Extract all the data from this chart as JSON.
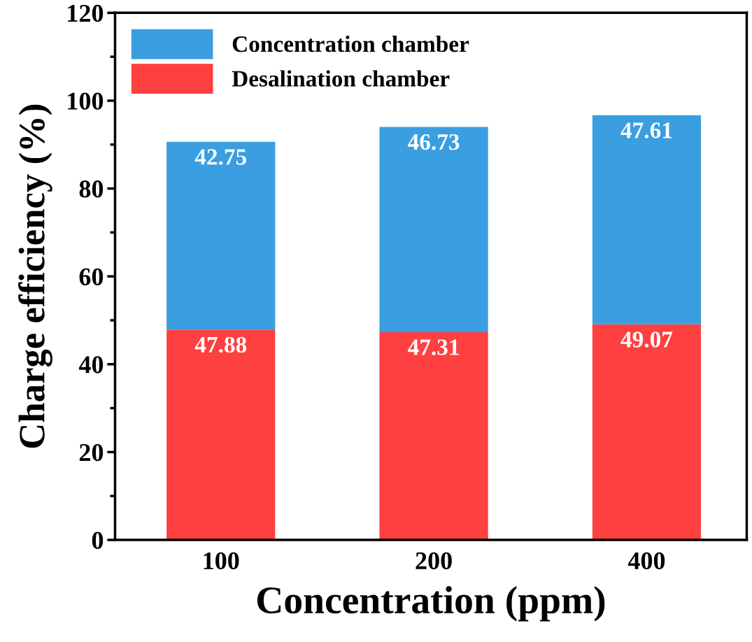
{
  "chart_data": {
    "type": "bar",
    "stacked": true,
    "xlabel": "Concentration (ppm)",
    "ylabel": "Charge efficiency (%)",
    "categories": [
      "100",
      "200",
      "400"
    ],
    "series": [
      {
        "name": "Desalination chamber",
        "color": "#ff4040",
        "values": [
          47.88,
          47.31,
          49.07
        ]
      },
      {
        "name": "Concentration chamber",
        "color": "#3a9ee0",
        "values": [
          42.75,
          46.73,
          47.61
        ]
      }
    ],
    "data_labels": true,
    "ylim": [
      0,
      120
    ],
    "yticks": [
      0,
      20,
      40,
      60,
      80,
      100,
      120
    ],
    "grid": false,
    "legend": "top left"
  }
}
